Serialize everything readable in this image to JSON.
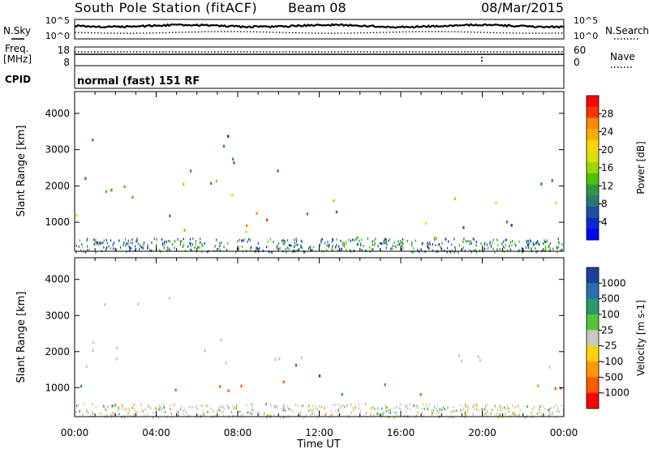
{
  "header": {
    "station": "South Pole Station (fitACF)",
    "beam": "Beam 08",
    "date": "08/Mar/2015"
  },
  "noise_panel": {
    "left_label": "N.Sky",
    "right_label": "N.Search",
    "left_ticks": [
      "10^5",
      "10^0"
    ],
    "right_ticks": [
      "10^5",
      "10^0"
    ]
  },
  "freq_panel": {
    "left_label_1": "Freq.",
    "left_label_2": "[MHz]",
    "right_label": "Nave",
    "left_ticks": [
      "18",
      "8"
    ],
    "right_ticks": [
      "60",
      "0"
    ]
  },
  "cpid": {
    "label": "CPID",
    "value": "normal (fast) 151 RF"
  },
  "x_axis": {
    "label": "Time UT",
    "ticks": [
      "00:00",
      "04:00",
      "08:00",
      "12:00",
      "16:00",
      "20:00",
      "00:00"
    ]
  },
  "power_colorbar": {
    "label": "Power [dB]",
    "ticks": [
      "28",
      "24",
      "20",
      "16",
      "12",
      "8",
      "4"
    ],
    "colors": [
      "#ff0000",
      "#ff3300",
      "#ff8800",
      "#ffaa00",
      "#ffd400",
      "#d8e000",
      "#9fd600",
      "#4fc000",
      "#2e9a40",
      "#2a7a70",
      "#1e4fa0",
      "#0a2ad0",
      "#0000ff"
    ]
  },
  "velocity_colorbar": {
    "label": "Velocity [m s-1]",
    "ticks": [
      "1000",
      "500",
      "100",
      "25",
      "-25",
      "-100",
      "-500",
      "-1000"
    ],
    "colors": [
      "#1e3fa0",
      "#2a6fb0",
      "#2a9a6a",
      "#55c43a",
      "#c8c8c0",
      "#ffd400",
      "#ff9a00",
      "#ff5a00",
      "#ff0000"
    ]
  },
  "chart_data": [
    {
      "type": "heatmap",
      "title": "",
      "xlabel": "Time UT",
      "ylabel": "Slant Range [km]",
      "yticks": [
        1000,
        2000,
        3000,
        4000
      ],
      "ylim": [
        200,
        4600
      ],
      "xlim_hours": [
        0,
        24
      ],
      "colorbar": "Power [dB]",
      "clim": [
        0,
        30
      ],
      "bands": [
        {
          "t0": 0.0,
          "t1": 11.2,
          "r0": 1550,
          "r1": 1900,
          "level": 13
        },
        {
          "t0": 0.0,
          "t1": 11.2,
          "r0": 1900,
          "r1": 2450,
          "level": 9
        },
        {
          "t0": 0.0,
          "t1": 2.0,
          "r0": 850,
          "r1": 1300,
          "level": 16
        },
        {
          "t0": 5.0,
          "t1": 10.5,
          "r0": 700,
          "r1": 1500,
          "level": 22
        },
        {
          "t0": 3.0,
          "t1": 5.0,
          "r0": 900,
          "r1": 1300,
          "level": 11
        },
        {
          "t0": 6.5,
          "t1": 8.2,
          "r0": 1800,
          "r1": 2800,
          "level": 11
        },
        {
          "t0": 11.2,
          "t1": 14.0,
          "r0": 800,
          "r1": 1700,
          "level": 13
        },
        {
          "t0": 13.0,
          "t1": 16.5,
          "r0": 350,
          "r1": 1000,
          "level": 9
        },
        {
          "t0": 16.2,
          "t1": 18.2,
          "r0": 550,
          "r1": 1250,
          "level": 24
        },
        {
          "t0": 18.2,
          "t1": 24.0,
          "r0": 1450,
          "r1": 1900,
          "level": 17
        },
        {
          "t0": 18.2,
          "t1": 24.0,
          "r0": 1900,
          "r1": 2250,
          "level": 9
        },
        {
          "t0": 18.5,
          "t1": 24.0,
          "r0": 600,
          "r1": 1100,
          "level": 8
        },
        {
          "t0": 0.5,
          "t1": 7.5,
          "r0": 3100,
          "r1": 3500,
          "level": 6
        }
      ]
    },
    {
      "type": "heatmap",
      "title": "",
      "xlabel": "Time UT",
      "ylabel": "Slant Range [km]",
      "yticks": [
        1000,
        2000,
        3000,
        4000
      ],
      "ylim": [
        200,
        4600
      ],
      "xlim_hours": [
        0,
        24
      ],
      "colorbar": "Velocity [m s-1]",
      "clim": [
        -1000,
        1000
      ],
      "bands": [
        {
          "t0": 0.0,
          "t1": 11.2,
          "r0": 1550,
          "r1": 2400,
          "level": 0
        },
        {
          "t0": 0.0,
          "t1": 2.5,
          "r0": 500,
          "r1": 1300,
          "level": 150
        },
        {
          "t0": 4.0,
          "t1": 10.5,
          "r0": 700,
          "r1": 1400,
          "level": -400
        },
        {
          "t0": 10.8,
          "t1": 12.5,
          "r0": 700,
          "r1": 1700,
          "level": 700
        },
        {
          "t0": 12.5,
          "t1": 16.0,
          "r0": 500,
          "r1": 1100,
          "level": 150
        },
        {
          "t0": 16.0,
          "t1": 18.2,
          "r0": 600,
          "r1": 1100,
          "level": -400
        },
        {
          "t0": 18.2,
          "t1": 24.0,
          "r0": 1400,
          "r1": 2100,
          "level": 0
        },
        {
          "t0": 18.5,
          "t1": 24.0,
          "r0": 650,
          "r1": 1150,
          "level": -400
        },
        {
          "t0": 0.5,
          "t1": 7.5,
          "r0": 3100,
          "r1": 3500,
          "level": 0
        }
      ]
    }
  ]
}
